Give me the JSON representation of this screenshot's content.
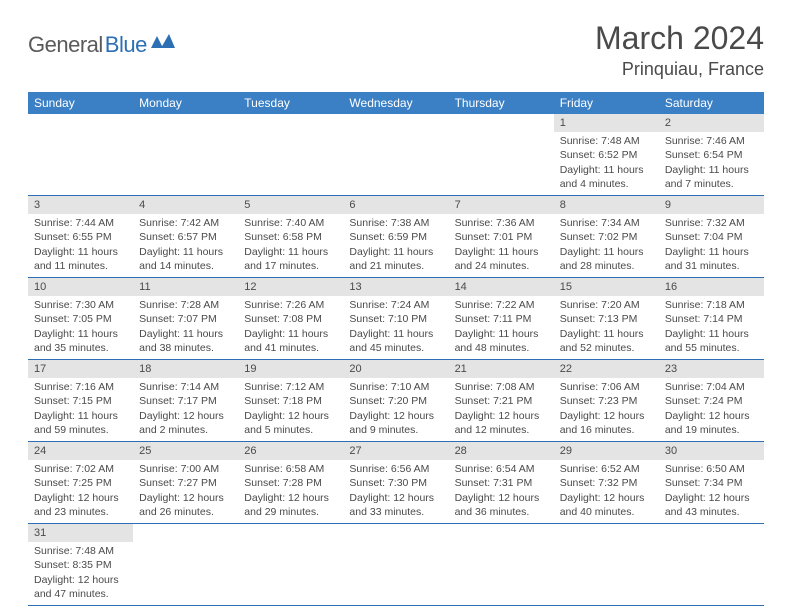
{
  "brand": {
    "part1": "General",
    "part2": "Blue"
  },
  "title": "March 2024",
  "location": "Prinquiau, France",
  "colors": {
    "header_bg": "#3b7fc4",
    "header_fg": "#ffffff",
    "daynum_bg": "#e4e4e4",
    "text": "#4a4a4a",
    "rule": "#2d6fb5",
    "logo_blue": "#2d6fb5"
  },
  "weekdays": [
    "Sunday",
    "Monday",
    "Tuesday",
    "Wednesday",
    "Thursday",
    "Friday",
    "Saturday"
  ],
  "weeks": [
    [
      null,
      null,
      null,
      null,
      null,
      {
        "n": "1",
        "sunrise": "7:48 AM",
        "sunset": "6:52 PM",
        "day_h": "11",
        "day_m": "4"
      },
      {
        "n": "2",
        "sunrise": "7:46 AM",
        "sunset": "6:54 PM",
        "day_h": "11",
        "day_m": "7"
      }
    ],
    [
      {
        "n": "3",
        "sunrise": "7:44 AM",
        "sunset": "6:55 PM",
        "day_h": "11",
        "day_m": "11"
      },
      {
        "n": "4",
        "sunrise": "7:42 AM",
        "sunset": "6:57 PM",
        "day_h": "11",
        "day_m": "14"
      },
      {
        "n": "5",
        "sunrise": "7:40 AM",
        "sunset": "6:58 PM",
        "day_h": "11",
        "day_m": "17"
      },
      {
        "n": "6",
        "sunrise": "7:38 AM",
        "sunset": "6:59 PM",
        "day_h": "11",
        "day_m": "21"
      },
      {
        "n": "7",
        "sunrise": "7:36 AM",
        "sunset": "7:01 PM",
        "day_h": "11",
        "day_m": "24"
      },
      {
        "n": "8",
        "sunrise": "7:34 AM",
        "sunset": "7:02 PM",
        "day_h": "11",
        "day_m": "28"
      },
      {
        "n": "9",
        "sunrise": "7:32 AM",
        "sunset": "7:04 PM",
        "day_h": "11",
        "day_m": "31"
      }
    ],
    [
      {
        "n": "10",
        "sunrise": "7:30 AM",
        "sunset": "7:05 PM",
        "day_h": "11",
        "day_m": "35"
      },
      {
        "n": "11",
        "sunrise": "7:28 AM",
        "sunset": "7:07 PM",
        "day_h": "11",
        "day_m": "38"
      },
      {
        "n": "12",
        "sunrise": "7:26 AM",
        "sunset": "7:08 PM",
        "day_h": "11",
        "day_m": "41"
      },
      {
        "n": "13",
        "sunrise": "7:24 AM",
        "sunset": "7:10 PM",
        "day_h": "11",
        "day_m": "45"
      },
      {
        "n": "14",
        "sunrise": "7:22 AM",
        "sunset": "7:11 PM",
        "day_h": "11",
        "day_m": "48"
      },
      {
        "n": "15",
        "sunrise": "7:20 AM",
        "sunset": "7:13 PM",
        "day_h": "11",
        "day_m": "52"
      },
      {
        "n": "16",
        "sunrise": "7:18 AM",
        "sunset": "7:14 PM",
        "day_h": "11",
        "day_m": "55"
      }
    ],
    [
      {
        "n": "17",
        "sunrise": "7:16 AM",
        "sunset": "7:15 PM",
        "day_h": "11",
        "day_m": "59"
      },
      {
        "n": "18",
        "sunrise": "7:14 AM",
        "sunset": "7:17 PM",
        "day_h": "12",
        "day_m": "2"
      },
      {
        "n": "19",
        "sunrise": "7:12 AM",
        "sunset": "7:18 PM",
        "day_h": "12",
        "day_m": "5"
      },
      {
        "n": "20",
        "sunrise": "7:10 AM",
        "sunset": "7:20 PM",
        "day_h": "12",
        "day_m": "9"
      },
      {
        "n": "21",
        "sunrise": "7:08 AM",
        "sunset": "7:21 PM",
        "day_h": "12",
        "day_m": "12"
      },
      {
        "n": "22",
        "sunrise": "7:06 AM",
        "sunset": "7:23 PM",
        "day_h": "12",
        "day_m": "16"
      },
      {
        "n": "23",
        "sunrise": "7:04 AM",
        "sunset": "7:24 PM",
        "day_h": "12",
        "day_m": "19"
      }
    ],
    [
      {
        "n": "24",
        "sunrise": "7:02 AM",
        "sunset": "7:25 PM",
        "day_h": "12",
        "day_m": "23"
      },
      {
        "n": "25",
        "sunrise": "7:00 AM",
        "sunset": "7:27 PM",
        "day_h": "12",
        "day_m": "26"
      },
      {
        "n": "26",
        "sunrise": "6:58 AM",
        "sunset": "7:28 PM",
        "day_h": "12",
        "day_m": "29"
      },
      {
        "n": "27",
        "sunrise": "6:56 AM",
        "sunset": "7:30 PM",
        "day_h": "12",
        "day_m": "33"
      },
      {
        "n": "28",
        "sunrise": "6:54 AM",
        "sunset": "7:31 PM",
        "day_h": "12",
        "day_m": "36"
      },
      {
        "n": "29",
        "sunrise": "6:52 AM",
        "sunset": "7:32 PM",
        "day_h": "12",
        "day_m": "40"
      },
      {
        "n": "30",
        "sunrise": "6:50 AM",
        "sunset": "7:34 PM",
        "day_h": "12",
        "day_m": "43"
      }
    ],
    [
      {
        "n": "31",
        "sunrise": "7:48 AM",
        "sunset": "8:35 PM",
        "day_h": "12",
        "day_m": "47"
      },
      null,
      null,
      null,
      null,
      null,
      null
    ]
  ],
  "labels": {
    "sunrise": "Sunrise:",
    "sunset": "Sunset:",
    "daylight": "Daylight:",
    "hours": "hours",
    "and": "and",
    "minutes": "minutes."
  }
}
